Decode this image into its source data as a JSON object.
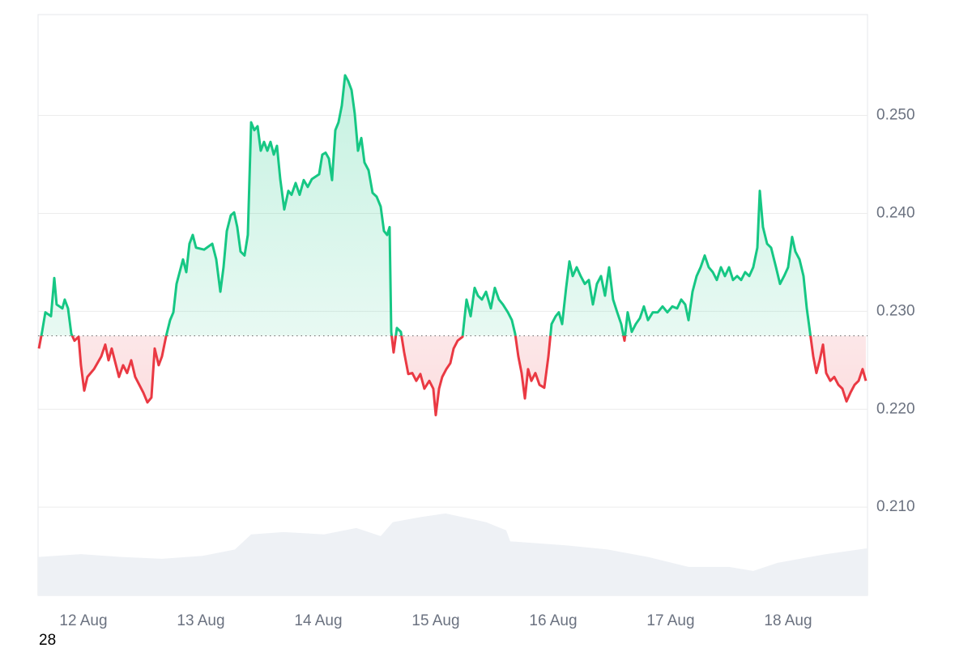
{
  "chart_data": {
    "type": "line",
    "footnote": "28",
    "xlim": [
      11.614,
      18.676
    ],
    "xticks": [
      {
        "value": 12,
        "label": "12 Aug"
      },
      {
        "value": 13,
        "label": "13 Aug"
      },
      {
        "value": 14,
        "label": "14 Aug"
      },
      {
        "value": 15,
        "label": "15 Aug"
      },
      {
        "value": 16,
        "label": "16 Aug"
      },
      {
        "value": 17,
        "label": "17 Aug"
      },
      {
        "value": 18,
        "label": "18 Aug"
      }
    ],
    "ylim": [
      0.201,
      0.2603
    ],
    "yticks": [
      {
        "value": 0.21,
        "label": "0.210"
      },
      {
        "value": 0.22,
        "label": "0.220"
      },
      {
        "value": 0.23,
        "label": "0.230"
      },
      {
        "value": 0.24,
        "label": "0.240"
      },
      {
        "value": 0.25,
        "label": "0.250"
      }
    ],
    "grid": true,
    "baseline": 0.2275,
    "color_above": "#16c784",
    "color_below": "#ea3943",
    "x": [
      11.621,
      11.648,
      11.676,
      11.724,
      11.752,
      11.772,
      11.821,
      11.841,
      11.869,
      11.897,
      11.924,
      11.959,
      11.979,
      12.007,
      12.034,
      12.09,
      12.152,
      12.186,
      12.214,
      12.241,
      12.303,
      12.338,
      12.372,
      12.407,
      12.441,
      12.51,
      12.545,
      12.579,
      12.607,
      12.641,
      12.669,
      12.703,
      12.738,
      12.766,
      12.793,
      12.848,
      12.876,
      12.903,
      12.931,
      12.959,
      13.028,
      13.097,
      13.131,
      13.166,
      13.193,
      13.221,
      13.255,
      13.283,
      13.31,
      13.338,
      13.372,
      13.4,
      13.428,
      13.455,
      13.483,
      13.51,
      13.538,
      13.566,
      13.593,
      13.621,
      13.648,
      13.676,
      13.71,
      13.745,
      13.772,
      13.807,
      13.841,
      13.876,
      13.91,
      13.945,
      14.007,
      14.034,
      14.062,
      14.09,
      14.117,
      14.145,
      14.172,
      14.2,
      14.228,
      14.255,
      14.283,
      14.31,
      14.338,
      14.366,
      14.393,
      14.428,
      14.462,
      14.497,
      14.531,
      14.559,
      14.586,
      14.607,
      14.621,
      14.641,
      14.669,
      14.703,
      14.731,
      14.766,
      14.8,
      14.834,
      14.869,
      14.903,
      14.945,
      14.979,
      15.0,
      15.028,
      15.055,
      15.09,
      15.124,
      15.152,
      15.186,
      15.228,
      15.262,
      15.297,
      15.331,
      15.359,
      15.393,
      15.428,
      15.469,
      15.503,
      15.538,
      15.572,
      15.614,
      15.648,
      15.676,
      15.703,
      15.731,
      15.759,
      15.786,
      15.814,
      15.848,
      15.883,
      15.924,
      15.959,
      15.986,
      16.021,
      16.048,
      16.076,
      16.11,
      16.138,
      16.166,
      16.2,
      16.234,
      16.269,
      16.303,
      16.338,
      16.372,
      16.407,
      16.441,
      16.476,
      16.51,
      16.545,
      16.579,
      16.607,
      16.634,
      16.669,
      16.703,
      16.738,
      16.772,
      16.807,
      16.848,
      16.89,
      16.931,
      16.972,
      17.014,
      17.055,
      17.09,
      17.124,
      17.152,
      17.186,
      17.221,
      17.255,
      17.29,
      17.324,
      17.359,
      17.393,
      17.428,
      17.462,
      17.497,
      17.531,
      17.566,
      17.6,
      17.634,
      17.669,
      17.703,
      17.738,
      17.759,
      17.786,
      17.821,
      17.855,
      17.897,
      17.931,
      17.966,
      18.0,
      18.034,
      18.062,
      18.097,
      18.131,
      18.159,
      18.186,
      18.214,
      18.241,
      18.269,
      18.297,
      18.324,
      18.359,
      18.393,
      18.428,
      18.462,
      18.497,
      18.531,
      18.566,
      18.6,
      18.634,
      18.662
    ],
    "values": [
      0.2262,
      0.2279,
      0.2299,
      0.2295,
      0.2334,
      0.2307,
      0.2303,
      0.2312,
      0.2303,
      0.2277,
      0.227,
      0.2274,
      0.2245,
      0.2219,
      0.2233,
      0.2241,
      0.2254,
      0.2266,
      0.225,
      0.2262,
      0.2233,
      0.2245,
      0.2237,
      0.225,
      0.2233,
      0.2217,
      0.2207,
      0.2212,
      0.2262,
      0.2245,
      0.2254,
      0.2274,
      0.2291,
      0.2299,
      0.2328,
      0.2353,
      0.234,
      0.2369,
      0.2378,
      0.2365,
      0.2363,
      0.2369,
      0.2353,
      0.232,
      0.2345,
      0.2382,
      0.2398,
      0.2401,
      0.2386,
      0.2361,
      0.2357,
      0.2378,
      0.2493,
      0.2485,
      0.2489,
      0.2464,
      0.2473,
      0.2464,
      0.2473,
      0.246,
      0.2469,
      0.2435,
      0.2404,
      0.2423,
      0.2419,
      0.2431,
      0.2419,
      0.2434,
      0.2427,
      0.2435,
      0.244,
      0.246,
      0.2462,
      0.2456,
      0.2434,
      0.2485,
      0.2493,
      0.251,
      0.2541,
      0.2535,
      0.2526,
      0.2502,
      0.2464,
      0.2477,
      0.2452,
      0.2444,
      0.2421,
      0.2417,
      0.2407,
      0.2382,
      0.2378,
      0.2386,
      0.2279,
      0.2258,
      0.2283,
      0.2279,
      0.2258,
      0.2236,
      0.2237,
      0.2229,
      0.2236,
      0.2221,
      0.2229,
      0.2221,
      0.2194,
      0.2221,
      0.2233,
      0.2241,
      0.2247,
      0.2262,
      0.227,
      0.2274,
      0.2312,
      0.2295,
      0.2324,
      0.2316,
      0.2312,
      0.232,
      0.2303,
      0.2324,
      0.2312,
      0.2307,
      0.2299,
      0.2291,
      0.2277,
      0.2254,
      0.2237,
      0.2211,
      0.2241,
      0.2229,
      0.2237,
      0.2225,
      0.2222,
      0.2254,
      0.2287,
      0.2295,
      0.2299,
      0.2287,
      0.2324,
      0.2351,
      0.2336,
      0.2345,
      0.2336,
      0.2328,
      0.2332,
      0.2307,
      0.2328,
      0.2336,
      0.2316,
      0.2345,
      0.2312,
      0.2299,
      0.2287,
      0.227,
      0.2299,
      0.2279,
      0.2287,
      0.2293,
      0.2305,
      0.2291,
      0.2299,
      0.2299,
      0.2305,
      0.2299,
      0.2305,
      0.2303,
      0.2312,
      0.2307,
      0.2291,
      0.232,
      0.2336,
      0.2345,
      0.2357,
      0.2345,
      0.234,
      0.2332,
      0.2345,
      0.2336,
      0.2345,
      0.2332,
      0.2336,
      0.2332,
      0.234,
      0.2336,
      0.2345,
      0.2365,
      0.2423,
      0.2386,
      0.2369,
      0.2365,
      0.2345,
      0.2328,
      0.2336,
      0.2345,
      0.2376,
      0.2361,
      0.2353,
      0.2336,
      0.2303,
      0.2279,
      0.2254,
      0.2237,
      0.225,
      0.2266,
      0.2237,
      0.2229,
      0.2233,
      0.2225,
      0.2221,
      0.2208,
      0.2217,
      0.2225,
      0.2229,
      0.2241,
      0.2229
    ],
    "volume": {
      "axis": "y2",
      "color": "#eef1f5",
      "x": [
        11.614,
        11.979,
        12.324,
        12.669,
        13.014,
        13.29,
        13.428,
        13.703,
        14.048,
        14.324,
        14.531,
        14.634,
        14.876,
        15.083,
        15.428,
        15.6,
        15.634,
        16.117,
        16.462,
        16.807,
        17.152,
        17.497,
        17.703,
        17.91,
        18.186,
        18.324,
        18.676
      ],
      "values": [
        6.6,
        7.1,
        6.6,
        6.3,
        6.8,
        7.9,
        10.5,
        10.9,
        10.5,
        11.6,
        10.2,
        12.6,
        13.5,
        14.1,
        12.6,
        11.2,
        9.3,
        8.6,
        7.9,
        6.6,
        4.9,
        4.9,
        4.2,
        5.6,
        6.6,
        7.1,
        8.1
      ]
    },
    "y2lim": [
      0,
      100
    ]
  }
}
